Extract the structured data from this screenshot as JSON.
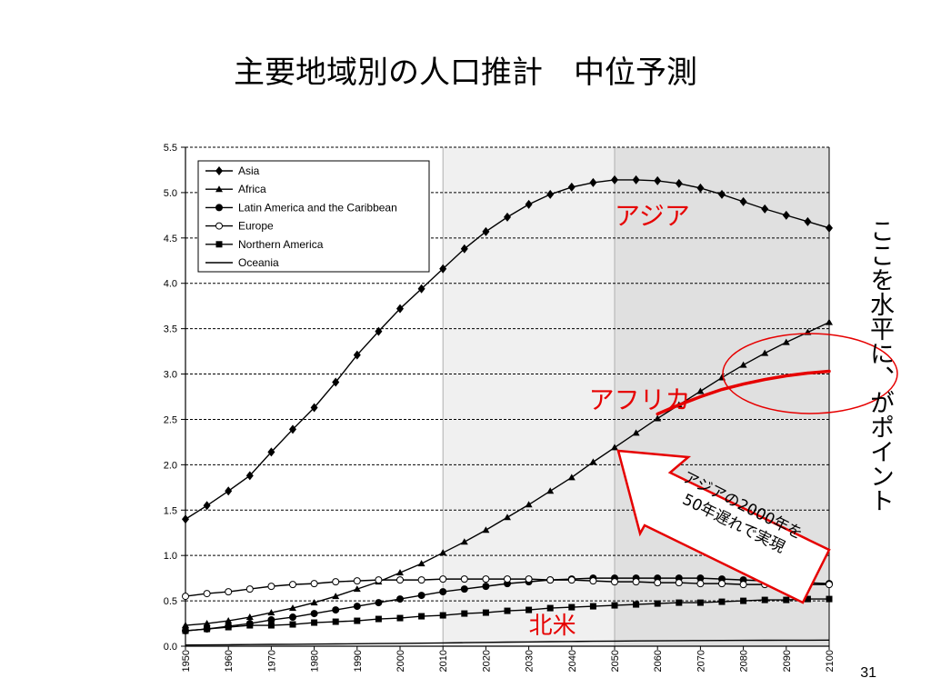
{
  "slide": {
    "title": "主要地域別の人口推計　中位予測",
    "side_note": "ここを水平に、がポイント",
    "page_number": "31"
  },
  "chart_data": {
    "type": "line",
    "title": "",
    "xlabel": "",
    "ylabel": "",
    "xlim": [
      1950,
      2100
    ],
    "ylim": [
      0,
      5.5
    ],
    "x_ticks": [
      "1950",
      "1960",
      "1970",
      "1980",
      "1990",
      "2000",
      "2010",
      "2020",
      "2030",
      "2040",
      "2050",
      "2060",
      "2070",
      "2080",
      "2090",
      "2100"
    ],
    "y_ticks": [
      "0.0",
      "0.5",
      "1.0",
      "1.5",
      "2.0",
      "2.5",
      "3.0",
      "3.5",
      "4.0",
      "4.5",
      "5.0",
      "5.5"
    ],
    "grid": "horizontal-dashed",
    "legend_position": "top-left",
    "shaded_regions": [
      {
        "from": 2010,
        "to": 2050,
        "color": "#f0f0f0"
      },
      {
        "from": 2050,
        "to": 2100,
        "color": "#e0e0e0"
      }
    ],
    "x": [
      1950,
      1955,
      1960,
      1965,
      1970,
      1975,
      1980,
      1985,
      1990,
      1995,
      2000,
      2005,
      2010,
      2015,
      2020,
      2025,
      2030,
      2035,
      2040,
      2045,
      2050,
      2055,
      2060,
      2065,
      2070,
      2075,
      2080,
      2085,
      2090,
      2095,
      2100
    ],
    "series": [
      {
        "name": "Asia",
        "marker": "diamond",
        "values": [
          1.4,
          1.55,
          1.71,
          1.88,
          2.14,
          2.39,
          2.63,
          2.91,
          3.21,
          3.47,
          3.72,
          3.94,
          4.16,
          4.38,
          4.57,
          4.73,
          4.87,
          4.98,
          5.06,
          5.11,
          5.14,
          5.14,
          5.13,
          5.1,
          5.05,
          4.98,
          4.9,
          4.82,
          4.75,
          4.68,
          4.61
        ]
      },
      {
        "name": "Africa",
        "marker": "triangle",
        "values": [
          0.23,
          0.25,
          0.28,
          0.32,
          0.37,
          0.42,
          0.48,
          0.55,
          0.63,
          0.71,
          0.81,
          0.91,
          1.03,
          1.15,
          1.28,
          1.42,
          1.56,
          1.71,
          1.86,
          2.03,
          2.19,
          2.35,
          2.51,
          2.66,
          2.81,
          2.96,
          3.1,
          3.23,
          3.35,
          3.46,
          3.57
        ]
      },
      {
        "name": "Latin America and the Caribbean",
        "marker": "circle",
        "values": [
          0.17,
          0.19,
          0.22,
          0.25,
          0.29,
          0.32,
          0.36,
          0.4,
          0.44,
          0.48,
          0.52,
          0.56,
          0.6,
          0.63,
          0.66,
          0.69,
          0.71,
          0.73,
          0.74,
          0.75,
          0.75,
          0.75,
          0.75,
          0.75,
          0.75,
          0.74,
          0.73,
          0.72,
          0.71,
          0.7,
          0.69
        ]
      },
      {
        "name": "Europe",
        "marker": "open-circle",
        "values": [
          0.55,
          0.58,
          0.6,
          0.63,
          0.66,
          0.68,
          0.69,
          0.71,
          0.72,
          0.73,
          0.73,
          0.73,
          0.74,
          0.74,
          0.74,
          0.74,
          0.74,
          0.73,
          0.73,
          0.72,
          0.71,
          0.71,
          0.7,
          0.7,
          0.69,
          0.69,
          0.68,
          0.68,
          0.68,
          0.68,
          0.68
        ]
      },
      {
        "name": "Northern America",
        "marker": "square",
        "values": [
          0.17,
          0.19,
          0.21,
          0.23,
          0.23,
          0.24,
          0.26,
          0.27,
          0.28,
          0.3,
          0.31,
          0.33,
          0.34,
          0.36,
          0.37,
          0.39,
          0.4,
          0.42,
          0.43,
          0.44,
          0.45,
          0.46,
          0.47,
          0.48,
          0.48,
          0.49,
          0.5,
          0.51,
          0.51,
          0.52,
          0.52
        ]
      },
      {
        "name": "Oceania",
        "marker": "none",
        "values": [
          0.013,
          0.014,
          0.016,
          0.018,
          0.02,
          0.021,
          0.023,
          0.025,
          0.027,
          0.029,
          0.031,
          0.033,
          0.036,
          0.039,
          0.042,
          0.045,
          0.047,
          0.05,
          0.052,
          0.054,
          0.056,
          0.058,
          0.059,
          0.061,
          0.062,
          0.063,
          0.064,
          0.065,
          0.066,
          0.066,
          0.067
        ]
      }
    ],
    "overlay": {
      "highlight_curve": {
        "color": "#e60000",
        "x": [
          2060,
          2065,
          2070,
          2075,
          2080,
          2085,
          2090,
          2095,
          2100
        ],
        "values": [
          2.56,
          2.66,
          2.75,
          2.83,
          2.89,
          2.94,
          2.98,
          3.01,
          3.03
        ]
      },
      "highlight_ellipse_color": "#e60000",
      "labels": [
        {
          "text": "アジア",
          "x": 2050,
          "y": 4.65,
          "color": "#e60000"
        },
        {
          "text": "アフリカ",
          "x": 2044,
          "y": 2.62,
          "color": "#e60000"
        },
        {
          "text": "北米",
          "x": 2030,
          "y": 0.14,
          "color": "#e60000"
        }
      ],
      "arrow_callout": {
        "lines": [
          "アジアの2000年を",
          "50年遅れで実現"
        ],
        "border_color": "#e60000"
      }
    }
  }
}
